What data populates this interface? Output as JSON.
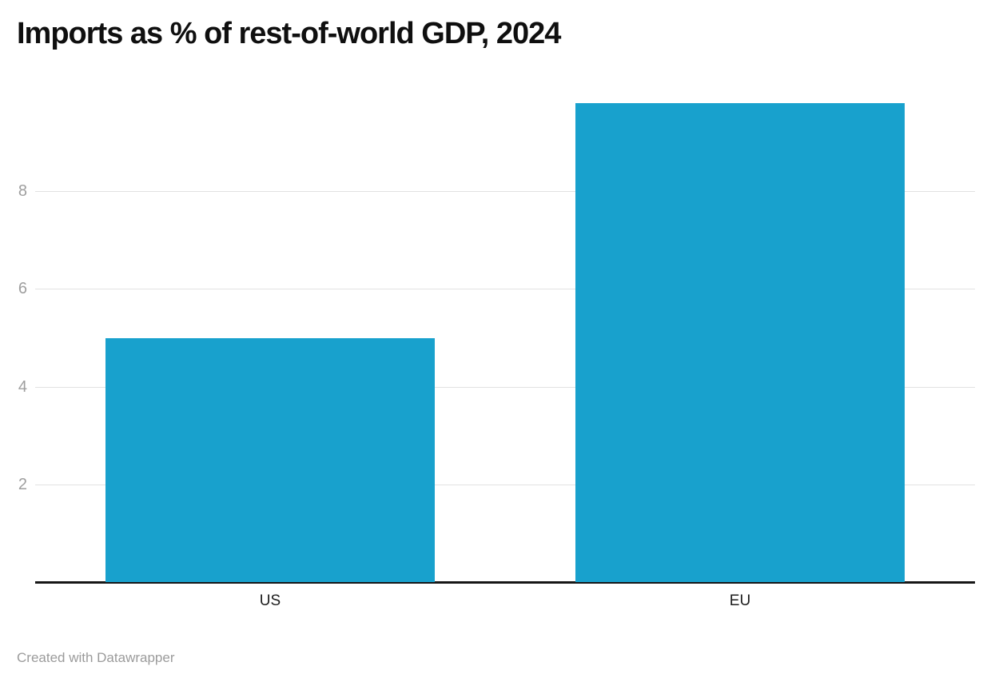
{
  "chart_data": {
    "type": "bar",
    "title": "Imports as % of rest-of-world GDP, 2024",
    "categories": [
      "US",
      "EU"
    ],
    "values": [
      5.0,
      9.8
    ],
    "xlabel": "",
    "ylabel": "",
    "y_ticks": [
      2,
      4,
      6,
      8
    ],
    "ylim": [
      0,
      10
    ],
    "grid": true,
    "legend": "none",
    "bar_color": "#18a1cd",
    "bar_width_fraction": 0.7,
    "colors": {
      "background": "#ffffff",
      "gridline": "#e2e2e2",
      "axis_line": "#161616",
      "tick_label": "#9e9e9e",
      "category_label": "#1d1d1d",
      "title": "#0f0f0f",
      "footer": "#9b9b9b"
    }
  },
  "footer": {
    "attribution": "Created with Datawrapper"
  }
}
